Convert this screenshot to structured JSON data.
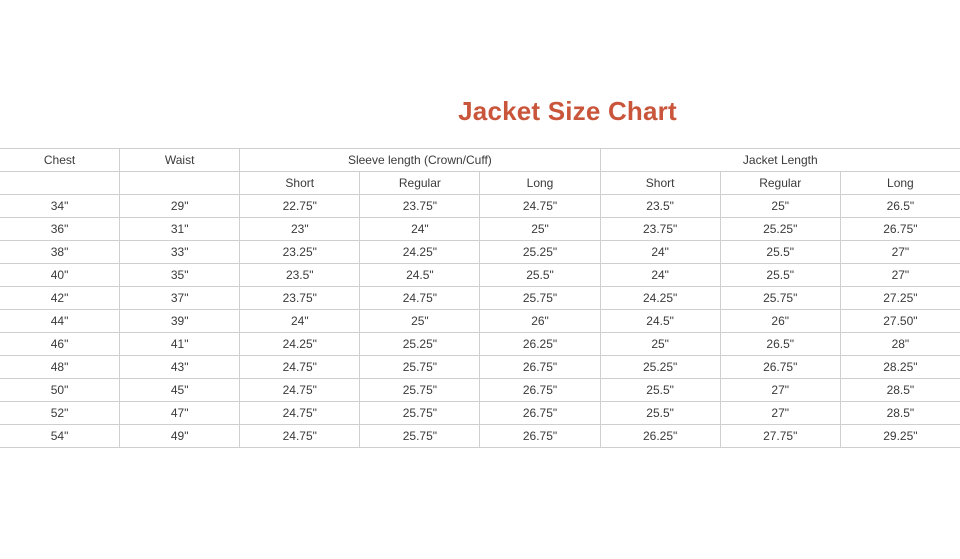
{
  "title": "Jacket Size Chart",
  "headers": {
    "chest": "Chest",
    "waist": "Waist",
    "sleeve_group": "Sleeve length (Crown/Cuff)",
    "jacket_group": "Jacket Length",
    "sub": [
      "Short",
      "Regular",
      "Long",
      "Short",
      "Regular",
      "Long"
    ]
  },
  "rows": [
    [
      "34\"",
      "29\"",
      "22.75\"",
      "23.75\"",
      "24.75\"",
      "23.5\"",
      "25\"",
      "26.5\""
    ],
    [
      "36\"",
      "31\"",
      "23\"",
      "24\"",
      "25\"",
      "23.75\"",
      "25.25\"",
      "26.75\""
    ],
    [
      "38\"",
      "33\"",
      "23.25\"",
      "24.25\"",
      "25.25\"",
      "24\"",
      "25.5\"",
      "27\""
    ],
    [
      "40\"",
      "35\"",
      "23.5\"",
      "24.5\"",
      "25.5\"",
      "24\"",
      "25.5\"",
      "27\""
    ],
    [
      "42\"",
      "37\"",
      "23.75\"",
      "24.75\"",
      "25.75\"",
      "24.25\"",
      "25.75\"",
      "27.25\""
    ],
    [
      "44\"",
      "39\"",
      "24\"",
      "25\"",
      "26\"",
      "24.5\"",
      "26\"",
      "27.50\""
    ],
    [
      "46\"",
      "41\"",
      "24.25\"",
      "25.25\"",
      "26.25\"",
      "25\"",
      "26.5\"",
      "28\""
    ],
    [
      "48\"",
      "43\"",
      "24.75\"",
      "25.75\"",
      "26.75\"",
      "25.25\"",
      "26.75\"",
      "28.25\""
    ],
    [
      "50\"",
      "45\"",
      "24.75\"",
      "25.75\"",
      "26.75\"",
      "25.5\"",
      "27\"",
      "28.5\""
    ],
    [
      "52\"",
      "47\"",
      "24.75\"",
      "25.75\"",
      "26.75\"",
      "25.5\"",
      "27\"",
      "28.5\""
    ],
    [
      "54\"",
      "49\"",
      "24.75\"",
      "25.75\"",
      "26.75\"",
      "26.25\"",
      "27.75\"",
      "29.25\""
    ]
  ],
  "colors": {
    "title": "#c9553b",
    "grid": "#cfcfcf"
  }
}
